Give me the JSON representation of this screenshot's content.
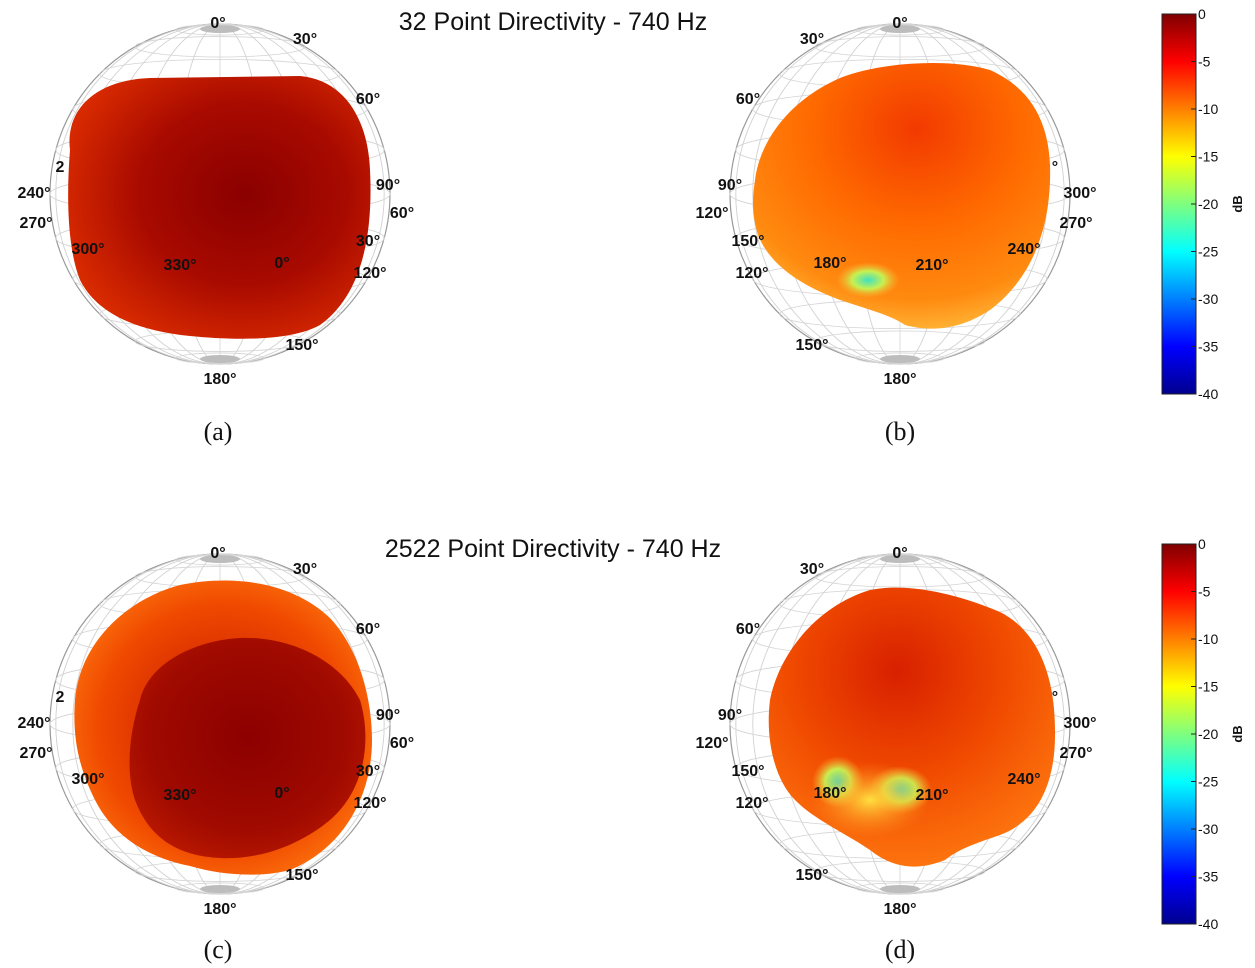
{
  "figure": {
    "titles": [
      "32 Point Directivity - 740 Hz",
      "2522 Point Directivity - 740 Hz"
    ],
    "colorbar_unit": "dB"
  },
  "chart_data": [
    {
      "type": "heatmap",
      "panel": "a",
      "caption": "(a)",
      "title": "32 Point Directivity - 740 Hz",
      "angle_labels": [
        "0°",
        "30°",
        "60°",
        "90°",
        "60°",
        "30°",
        "120°",
        "150°",
        "180°",
        "330°",
        "0°",
        "300°",
        "270°",
        "240°",
        "2"
      ],
      "colorbar": {
        "ticks": [
          "0",
          "-5",
          "-10",
          "-15",
          "-20",
          "-25",
          "-30",
          "-35",
          "-40"
        ],
        "range": [
          -40,
          0
        ],
        "unit": "dB",
        "colormap": "jet"
      }
    },
    {
      "type": "heatmap",
      "panel": "b",
      "caption": "(b)",
      "angle_labels": [
        "0°",
        "30°",
        "60°",
        "90°",
        "120°",
        "150°",
        "120°",
        "150°",
        "180°",
        "180°",
        "210°",
        "240°",
        "270°",
        "300°",
        "°"
      ]
    },
    {
      "type": "heatmap",
      "panel": "c",
      "caption": "(c)",
      "title": "2522 Point Directivity - 740 Hz",
      "angle_labels": [
        "0°",
        "30°",
        "60°",
        "90°",
        "60°",
        "30°",
        "120°",
        "150°",
        "180°",
        "330°",
        "0°",
        "300°",
        "270°",
        "240°",
        "2"
      ],
      "colorbar": {
        "ticks": [
          "0",
          "-5",
          "-10",
          "-15",
          "-20",
          "-25",
          "-30",
          "-35",
          "-40"
        ],
        "range": [
          -40,
          0
        ],
        "unit": "dB",
        "colormap": "jet"
      }
    },
    {
      "type": "heatmap",
      "panel": "d",
      "caption": "(d)",
      "angle_labels": [
        "0°",
        "30°",
        "60°",
        "90°",
        "120°",
        "150°",
        "120°",
        "150°",
        "180°",
        "180°",
        "210°",
        "240°",
        "270°",
        "300°",
        "°"
      ]
    }
  ]
}
